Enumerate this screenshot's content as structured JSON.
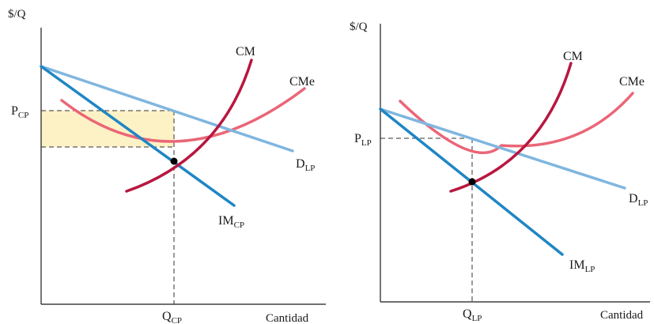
{
  "colors": {
    "demand": "#7fb6df",
    "marginal_revenue": "#1f86c4",
    "marginal_cost": "#b8173f",
    "average_cost": "#ea6677",
    "profit_area": "#fdf1c6",
    "axes": "#1a1a1a"
  },
  "left_panel": {
    "y_axis_label": "$/Q",
    "x_axis_label": "Cantidad",
    "price_label": {
      "main": "P",
      "sub": "CP"
    },
    "quantity_label": {
      "main": "Q",
      "sub": "CP"
    },
    "mc_label": "CM",
    "ac_label": "CMe",
    "demand_label": {
      "main": "D",
      "sub": "LP"
    },
    "mr_label": {
      "main": "IM",
      "sub": "CP"
    }
  },
  "right_panel": {
    "y_axis_label": "$/Q",
    "x_axis_label": "Cantidad",
    "price_label": {
      "main": "P",
      "sub": "LP"
    },
    "quantity_label": {
      "main": "Q",
      "sub": "LP"
    },
    "mc_label": "CM",
    "ac_label": "CMe",
    "demand_label": {
      "main": "D",
      "sub": "LP"
    },
    "mr_label": {
      "main": "IM",
      "sub": "LP"
    }
  }
}
